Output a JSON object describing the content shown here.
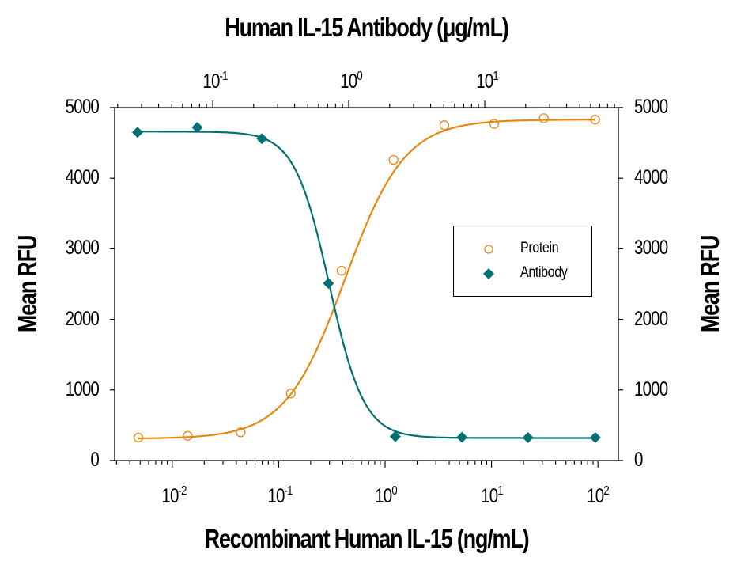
{
  "chart_data": {
    "type": "scatter",
    "title": "Human IL-15 Antibody (μg/mL)",
    "xlabel": "Recombinant Human IL-15 (ng/mL)",
    "x2label": "Human IL-15 Antibody (μg/mL)",
    "ylabel": "Mean RFU",
    "y2label": "Mean RFU",
    "xscale": "log",
    "xlim": [
      0.0035,
      150
    ],
    "x2lim": [
      0.018,
      110
    ],
    "ylim": [
      0,
      5000
    ],
    "yticks": [
      0,
      1000,
      2000,
      3000,
      4000,
      5000
    ],
    "xticks": [
      "10^-2",
      "10^-1",
      "10^0",
      "10^1",
      "10^2"
    ],
    "x2ticks": [
      "10^-1",
      "10^0",
      "10^1"
    ],
    "grid": false,
    "legend_position": "center-right",
    "series": [
      {
        "name": "Protein",
        "axis": "bottom",
        "marker": "open-circle",
        "color": "#E8870E",
        "x": [
          0.0048,
          0.014,
          0.044,
          0.13,
          0.39,
          1.2,
          3.6,
          10.6,
          31,
          94
        ],
        "y": [
          325,
          350,
          400,
          950,
          2690,
          4260,
          4750,
          4770,
          4850,
          4830
        ],
        "fit": "4PL sigmoid increasing"
      },
      {
        "name": "Antibody",
        "axis": "top",
        "marker": "filled-diamond",
        "color": "#007070",
        "x": [
          0.028,
          0.077,
          0.23,
          0.71,
          2.2,
          6.8,
          20.8,
          65
        ],
        "y": [
          4650,
          4720,
          4560,
          2510,
          340,
          330,
          325,
          325
        ],
        "fit": "4PL sigmoid decreasing"
      }
    ]
  },
  "labels": {
    "top_title": "Human IL-15 Antibody (μg/mL)",
    "bottom_title": "Recombinant Human IL-15 (ng/mL)",
    "y_left": "Mean RFU",
    "y_right": "Mean RFU",
    "y_ticks": [
      "5000",
      "4000",
      "3000",
      "2000",
      "1000",
      "0"
    ],
    "x_bottom_base": [
      "10",
      "10",
      "10",
      "10",
      "10"
    ],
    "x_bottom_exp": [
      "-2",
      "-1",
      "0",
      "1",
      "2"
    ],
    "x_top_base": [
      "10",
      "10",
      "10"
    ],
    "x_top_exp": [
      "-1",
      "0",
      "1"
    ]
  },
  "legend": {
    "items": [
      {
        "label": "Protein",
        "color": "#E8870E",
        "marker": "open-circle"
      },
      {
        "label": "Antibody",
        "color": "#007070",
        "marker": "filled-diamond"
      }
    ]
  }
}
